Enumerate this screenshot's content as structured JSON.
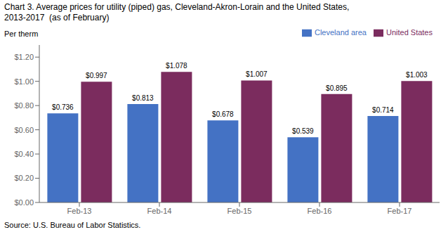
{
  "chart_data": {
    "type": "bar",
    "title": "Chart 3. Average prices for utility (piped) gas, Cleveland-Akron-Lorain and the United States,",
    "subtitle": "2013-2017  (as of February)",
    "y_label": "Per therm",
    "annotations": [
      "Source: U.S. Bureau of Labor Statistics."
    ],
    "categories": [
      "Feb-13",
      "Feb-14",
      "Feb-15",
      "Feb-16",
      "Feb-17"
    ],
    "series": [
      {
        "name": "Cleveland area",
        "color": "#4472C4",
        "values": [
          0.736,
          0.813,
          0.678,
          0.539,
          0.714
        ],
        "value_labels": [
          "$0.736",
          "$0.813",
          "$0.678",
          "$0.539",
          "$0.714"
        ]
      },
      {
        "name": "United States",
        "color": "#7B2C5E",
        "values": [
          0.997,
          1.078,
          1.007,
          0.895,
          1.003
        ],
        "value_labels": [
          "$0.997",
          "$1.078",
          "$1.007",
          "$0.895",
          "$1.003"
        ]
      }
    ],
    "ylim": [
      0,
      1.3
    ],
    "yticks": [
      {
        "value": 0.0,
        "label": "$0.00"
      },
      {
        "value": 0.2,
        "label": "$0.20"
      },
      {
        "value": 0.4,
        "label": "$0.40"
      },
      {
        "value": 0.6,
        "label": "$0.60"
      },
      {
        "value": 0.8,
        "label": "$0.80"
      },
      {
        "value": 1.0,
        "label": "$1.00"
      },
      {
        "value": 1.2,
        "label": "$1.20"
      }
    ],
    "data_labels": true,
    "legend": "top right",
    "grid": false
  }
}
